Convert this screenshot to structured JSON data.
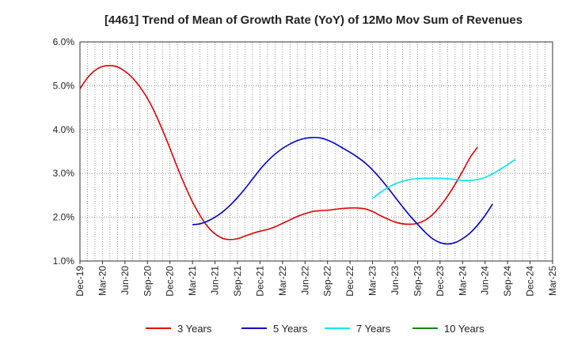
{
  "chart_data": {
    "type": "line",
    "title": "[4461]  Trend of Mean of Growth Rate (YoY) of 12Mo Mov Sum of Revenues",
    "xlabel": "",
    "ylabel": "",
    "ylim": [
      1.0,
      6.0
    ],
    "yticks": [
      1.0,
      2.0,
      3.0,
      4.0,
      5.0,
      6.0
    ],
    "ytick_labels": [
      "1.0%",
      "2.0%",
      "3.0%",
      "4.0%",
      "5.0%",
      "6.0%"
    ],
    "xtick_labels": [
      "Dec-19",
      "Mar-20",
      "Jun-20",
      "Sep-20",
      "Dec-20",
      "Mar-21",
      "Jun-21",
      "Sep-21",
      "Dec-21",
      "Mar-22",
      "Jun-22",
      "Sep-22",
      "Dec-22",
      "Mar-23",
      "Jun-23",
      "Sep-23",
      "Dec-23",
      "Mar-24",
      "Jun-24",
      "Sep-24",
      "Dec-24",
      "Mar-25"
    ],
    "x_index_range": [
      0,
      63
    ],
    "grid": "vertical-dotted-monthly",
    "series": [
      {
        "name": "3 Years",
        "color": "#e00000",
        "start_index": 0,
        "values": [
          4.93,
          5.18,
          5.35,
          5.44,
          5.46,
          5.43,
          5.33,
          5.18,
          4.97,
          4.71,
          4.38,
          3.99,
          3.57,
          3.13,
          2.72,
          2.35,
          2.04,
          1.79,
          1.62,
          1.52,
          1.49,
          1.51,
          1.57,
          1.63,
          1.68,
          1.72,
          1.78,
          1.86,
          1.94,
          2.02,
          2.08,
          2.13,
          2.15,
          2.16,
          2.18,
          2.2,
          2.21,
          2.21,
          2.19,
          2.13,
          2.04,
          1.96,
          1.89,
          1.85,
          1.84,
          1.86,
          1.93,
          2.06,
          2.25,
          2.48,
          2.75,
          3.05,
          3.36,
          3.6
        ]
      },
      {
        "name": "5 Years",
        "color": "#0000cc",
        "start_index": 15,
        "values": [
          1.83,
          1.85,
          1.91,
          2.0,
          2.12,
          2.27,
          2.45,
          2.65,
          2.87,
          3.09,
          3.28,
          3.44,
          3.57,
          3.67,
          3.75,
          3.8,
          3.82,
          3.81,
          3.76,
          3.68,
          3.58,
          3.48,
          3.37,
          3.24,
          3.08,
          2.89,
          2.68,
          2.46,
          2.24,
          2.03,
          1.84,
          1.66,
          1.51,
          1.42,
          1.39,
          1.42,
          1.51,
          1.64,
          1.82,
          2.04,
          2.3
        ]
      },
      {
        "name": "7 Years",
        "color": "#00e8e8",
        "start_index": 39,
        "values": [
          2.43,
          2.56,
          2.67,
          2.76,
          2.82,
          2.86,
          2.88,
          2.89,
          2.89,
          2.89,
          2.88,
          2.86,
          2.84,
          2.84,
          2.86,
          2.91,
          2.99,
          3.09,
          3.2,
          3.32
        ]
      },
      {
        "name": "10 Years",
        "color": "#118811",
        "start_index": 0,
        "values": []
      }
    ],
    "legend_position": "bottom"
  }
}
